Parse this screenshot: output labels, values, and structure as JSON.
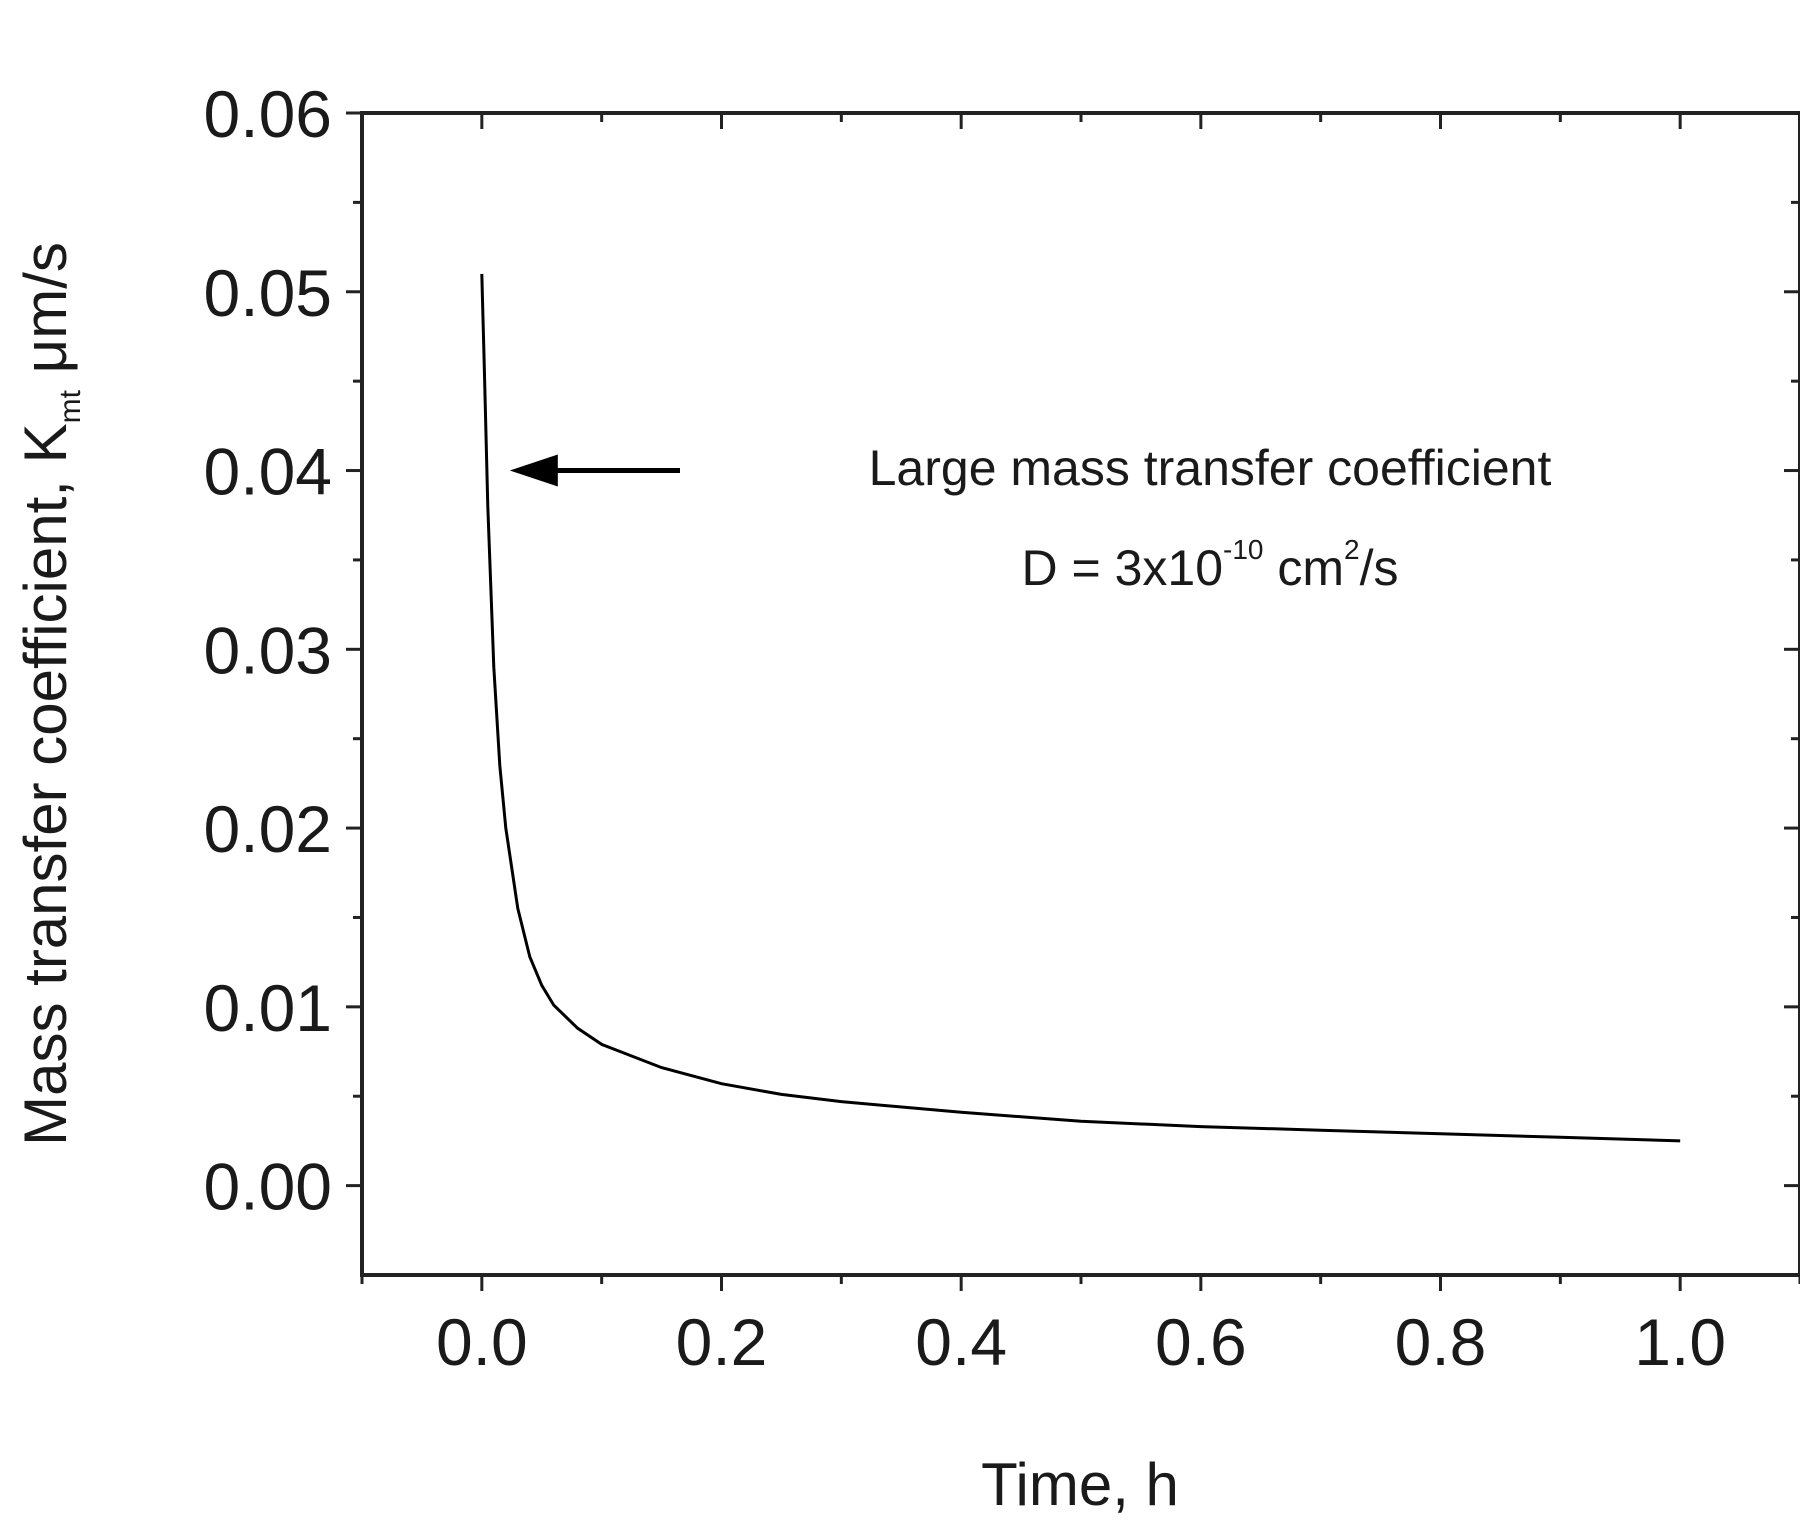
{
  "chart_data": {
    "type": "line",
    "title": "",
    "xlabel": "Time, h",
    "ylabel": {
      "main": "Mass transfer coefficient, K",
      "subscript": "mt",
      "unit": " μm/s"
    },
    "xlim": [
      -0.1,
      1.1
    ],
    "ylim": [
      -0.005,
      0.06
    ],
    "x_ticks": [
      0.0,
      0.2,
      0.4,
      0.6,
      0.8,
      1.0
    ],
    "x_tick_labels": [
      "0.0",
      "0.2",
      "0.4",
      "0.6",
      "0.8",
      "1.0"
    ],
    "y_ticks": [
      0.0,
      0.01,
      0.02,
      0.03,
      0.04,
      0.05,
      0.06
    ],
    "y_tick_labels": [
      "0.00",
      "0.01",
      "0.02",
      "0.03",
      "0.04",
      "0.05",
      "0.06"
    ],
    "grid": false,
    "legend": "none",
    "series": [
      {
        "color": "#000000",
        "x": [
          0.0,
          0.002,
          0.005,
          0.01,
          0.015,
          0.02,
          0.03,
          0.04,
          0.05,
          0.06,
          0.08,
          0.1,
          0.15,
          0.2,
          0.25,
          0.3,
          0.4,
          0.5,
          0.6,
          0.7,
          0.8,
          0.9,
          1.0
        ],
        "y": [
          0.051,
          0.046,
          0.038,
          0.029,
          0.0235,
          0.02,
          0.0155,
          0.0128,
          0.0112,
          0.0101,
          0.0088,
          0.0079,
          0.0066,
          0.0057,
          0.0051,
          0.0047,
          0.0041,
          0.0036,
          0.0033,
          0.0031,
          0.0029,
          0.0027,
          0.0025
        ]
      }
    ],
    "annotations": [
      {
        "text": "Large mass transfer coefficient",
        "arrow_to": [
          0.015,
          0.04
        ]
      },
      {
        "parts": [
          "D = 3x10",
          "-10",
          " cm",
          "2",
          "/s"
        ]
      }
    ]
  }
}
